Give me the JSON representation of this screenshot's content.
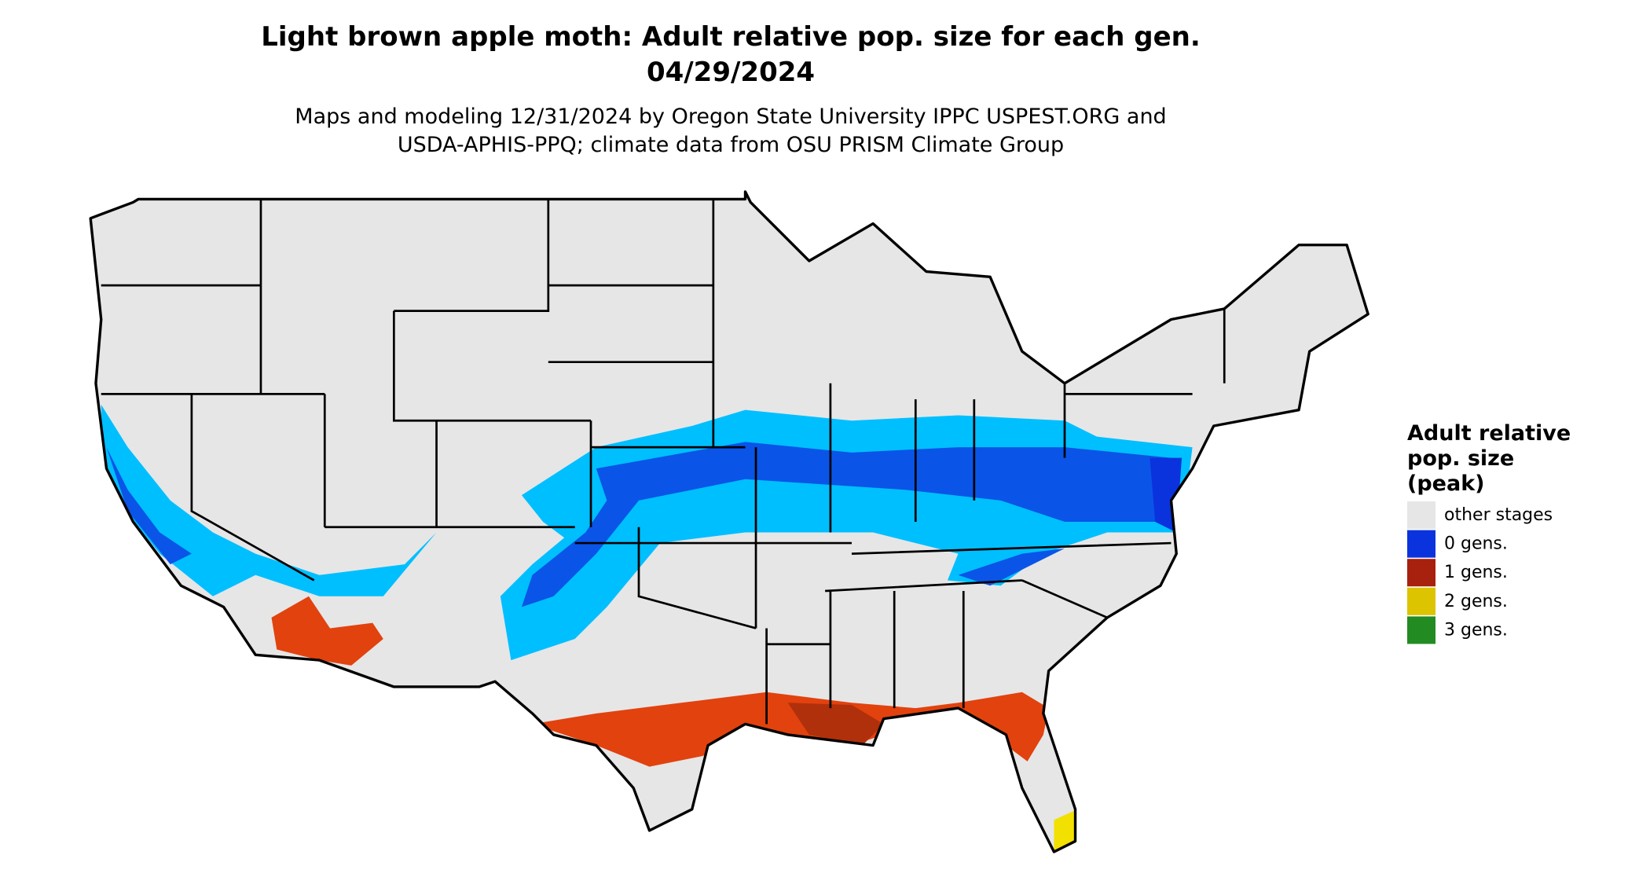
{
  "title": "Light brown apple moth: Adult relative pop. size for each gen.",
  "date": "04/29/2024",
  "subtitle": [
    "Maps and modeling 12/31/2024 by Oregon State University IPPC USPEST.ORG and",
    "USDA-APHIS-PPQ; climate data from OSU PRISM Climate Group"
  ],
  "legend": {
    "title": [
      "Adult relative",
      "pop. size",
      "(peak)"
    ],
    "items": [
      {
        "label": "other stages",
        "color": "#e6e6e6"
      },
      {
        "label": "0 gens.",
        "color": "#0a33dd"
      },
      {
        "label": "1 gens.",
        "color": "#a8200e"
      },
      {
        "label": "2 gens.",
        "color": "#dcc400"
      },
      {
        "label": "3 gens.",
        "color": "#228b22"
      }
    ]
  }
}
